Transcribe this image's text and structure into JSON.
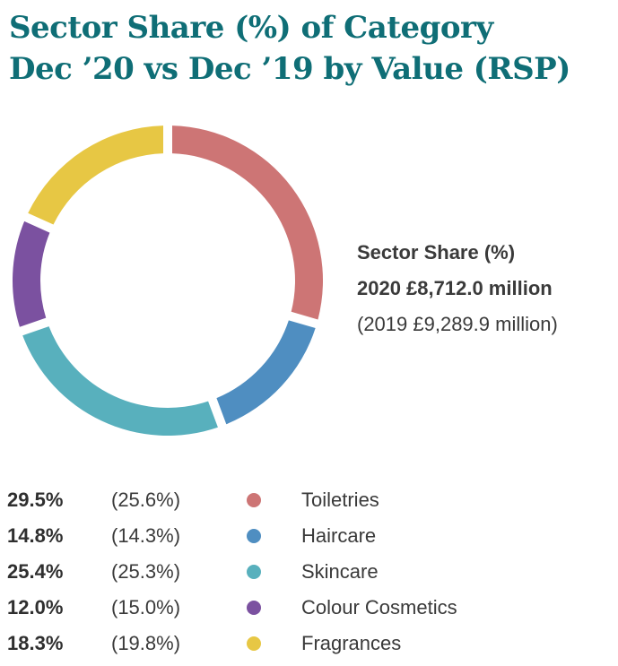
{
  "title": {
    "line1": "Sector Share (%) of Category",
    "line2": "Dec ’20 vs Dec ’19 by Value (RSP)"
  },
  "info": {
    "heading": "Sector Share (%)",
    "current": "2020 £8,712.0 million",
    "previous": "(2019 £9,289.9 million)"
  },
  "legend": [
    {
      "current": "29.5%",
      "previous": "(25.6%)",
      "label": "Toiletries",
      "color": "#cd7575"
    },
    {
      "current": "14.8%",
      "previous": "(14.3%)",
      "label": "Haircare",
      "color": "#4f8ec1"
    },
    {
      "current": "25.4%",
      "previous": "(25.3%)",
      "label": "Skincare",
      "color": "#58b0bd"
    },
    {
      "current": "12.0%",
      "previous": "(15.0%)",
      "label": "Colour Cosmetics",
      "color": "#7b51a0"
    },
    {
      "current": "18.3%",
      "previous": "(19.8%)",
      "label": "Fragrances",
      "color": "#e7c744"
    }
  ],
  "chart_data": {
    "type": "pie",
    "donut": true,
    "categories": [
      "Toiletries",
      "Haircare",
      "Skincare",
      "Colour Cosmetics",
      "Fragrances"
    ],
    "series": [
      {
        "name": "2020",
        "values": [
          29.5,
          14.8,
          25.4,
          12.0,
          18.3
        ]
      },
      {
        "name": "2019",
        "values": [
          25.6,
          14.3,
          25.3,
          15.0,
          19.8
        ]
      }
    ],
    "colors": [
      "#cd7575",
      "#4f8ec1",
      "#58b0bd",
      "#7b51a0",
      "#e7c744"
    ],
    "title": "Sector Share (%) of Category Dec ’20 vs Dec ’19 by Value (RSP)",
    "legend": "bottom"
  }
}
